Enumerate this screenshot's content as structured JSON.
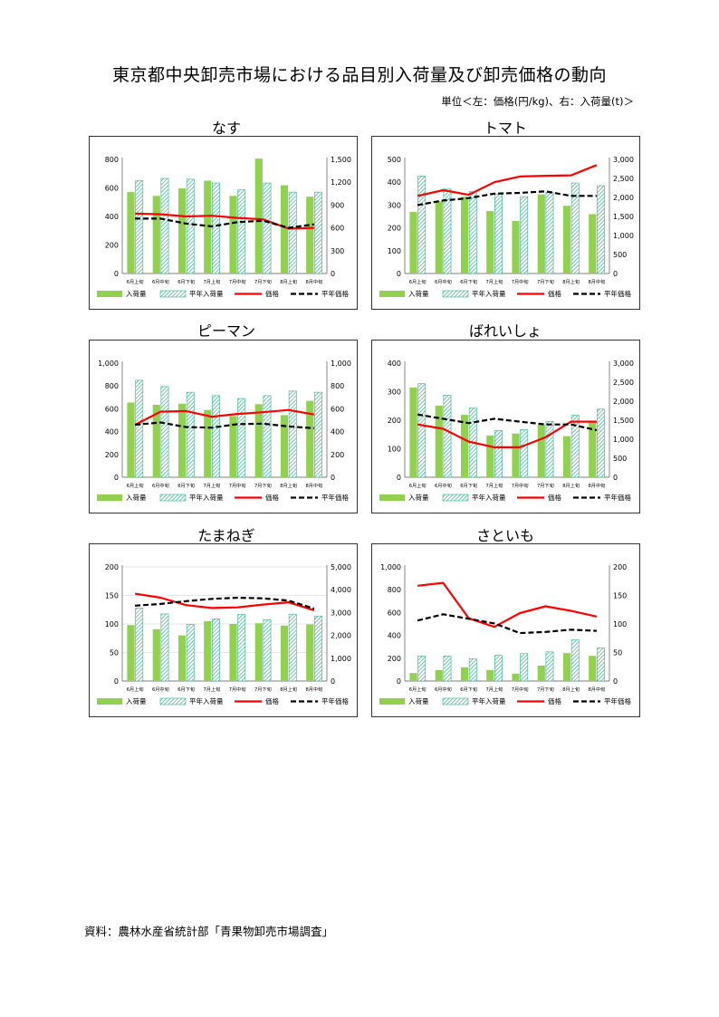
{
  "page": {
    "title": "東京都中央卸売市場における品目別入荷量及び卸売価格の動向",
    "unit_note": "単位＜左：価格(円/kg)、右：入荷量(t)＞",
    "source": "資料：農林水産省統計部「青果物卸売市場調査」"
  },
  "colors": {
    "arrival": "#92d050",
    "normal_arrival": "#33b08a",
    "price": "#ff0000",
    "normal_price": "#000000"
  },
  "legend": {
    "arrival": "入荷量",
    "normal_arrival": "平年入荷量",
    "price": "価格",
    "normal_price": "平年価格"
  },
  "chart_data": [
    {
      "type": "bar",
      "title": "なす",
      "categories": [
        "6月上旬",
        "6月中旬",
        "6月下旬",
        "7月上旬",
        "7月中旬",
        "7月下旬",
        "8月上旬",
        "8月中旬"
      ],
      "left_axis": {
        "min": 0,
        "max": 800,
        "ticks": [
          "0",
          "200",
          "400",
          "600",
          "800"
        ]
      },
      "right_axis": {
        "min": 0,
        "max": 1500,
        "ticks": [
          "0",
          "300",
          "600",
          "900",
          "1,200",
          "1,500"
        ]
      },
      "series": [
        {
          "name": "入荷量",
          "axis": "right",
          "values": [
            1070,
            1020,
            1120,
            1220,
            1020,
            1510,
            1160,
            1010
          ]
        },
        {
          "name": "平年入荷量",
          "axis": "right",
          "values": [
            1220,
            1250,
            1240,
            1190,
            1100,
            1190,
            1070,
            1070
          ]
        },
        {
          "name": "価格",
          "axis": "left",
          "values": [
            420,
            415,
            400,
            405,
            390,
            380,
            315,
            320
          ]
        },
        {
          "name": "平年価格",
          "axis": "left",
          "values": [
            385,
            385,
            350,
            330,
            360,
            370,
            320,
            345
          ]
        }
      ]
    },
    {
      "type": "bar",
      "title": "トマト",
      "categories": [
        "6月上旬",
        "6月中旬",
        "6月下旬",
        "7月上旬",
        "7月中旬",
        "7月下旬",
        "8月上旬",
        "8月中旬"
      ],
      "left_axis": {
        "min": 0,
        "max": 500,
        "ticks": [
          "0",
          "100",
          "200",
          "300",
          "400",
          "500"
        ]
      },
      "right_axis": {
        "min": 0,
        "max": 3000,
        "ticks": [
          "0",
          "500",
          "1,000",
          "1,500",
          "2,000",
          "2,500",
          "3,000"
        ]
      },
      "series": [
        {
          "name": "入荷量",
          "axis": "right",
          "values": [
            1620,
            1900,
            2020,
            1640,
            1380,
            2080,
            1780,
            1560
          ]
        },
        {
          "name": "平年入荷量",
          "axis": "right",
          "values": [
            2560,
            2220,
            2150,
            2080,
            2020,
            2130,
            2380,
            2310
          ]
        },
        {
          "name": "価格",
          "axis": "left",
          "values": [
            340,
            365,
            345,
            400,
            425,
            428,
            430,
            475
          ]
        },
        {
          "name": "平年価格",
          "axis": "left",
          "values": [
            300,
            320,
            330,
            350,
            353,
            360,
            340,
            340
          ]
        }
      ]
    },
    {
      "type": "bar",
      "title": "ピーマン",
      "categories": [
        "6月上旬",
        "6月中旬",
        "6月下旬",
        "7月上旬",
        "7月中旬",
        "7月下旬",
        "8月上旬",
        "8月中旬"
      ],
      "left_axis": {
        "min": 0,
        "max": 1000,
        "ticks": [
          "0",
          "200",
          "400",
          "600",
          "800",
          "1,000"
        ]
      },
      "right_axis": {
        "min": 0,
        "max": 1000,
        "ticks": [
          "0",
          "200",
          "400",
          "600",
          "800",
          "1,000"
        ]
      },
      "series": [
        {
          "name": "入荷量",
          "axis": "right",
          "values": [
            655,
            635,
            645,
            590,
            535,
            640,
            545,
            670
          ]
        },
        {
          "name": "平年入荷量",
          "axis": "right",
          "values": [
            850,
            795,
            745,
            715,
            690,
            715,
            755,
            745
          ]
        },
        {
          "name": "価格",
          "axis": "left",
          "values": [
            460,
            575,
            580,
            530,
            555,
            570,
            590,
            550
          ]
        },
        {
          "name": "平年価格",
          "axis": "left",
          "values": [
            460,
            480,
            440,
            435,
            465,
            470,
            445,
            430
          ]
        }
      ]
    },
    {
      "type": "bar",
      "title": "ばれいしょ",
      "categories": [
        "6月上旬",
        "6月中旬",
        "6月下旬",
        "7月上旬",
        "7月中旬",
        "7月下旬",
        "8月上旬",
        "8月中旬"
      ],
      "left_axis": {
        "min": 0,
        "max": 400,
        "ticks": [
          "0",
          "100",
          "200",
          "300",
          "400"
        ]
      },
      "right_axis": {
        "min": 0,
        "max": 3000,
        "ticks": [
          "0",
          "500",
          "1,000",
          "1,500",
          "2,000",
          "2,500",
          "3,000"
        ]
      },
      "series": [
        {
          "name": "入荷量",
          "axis": "right",
          "values": [
            2360,
            1880,
            1640,
            1100,
            1150,
            1380,
            1080,
            1450
          ]
        },
        {
          "name": "平年入荷量",
          "axis": "right",
          "values": [
            2460,
            2160,
            1820,
            1230,
            1250,
            1470,
            1630,
            1790
          ]
        },
        {
          "name": "価格",
          "axis": "left",
          "values": [
            185,
            170,
            125,
            105,
            105,
            140,
            195,
            195
          ]
        },
        {
          "name": "平年価格",
          "axis": "left",
          "values": [
            220,
            205,
            190,
            205,
            195,
            185,
            185,
            165
          ]
        }
      ]
    },
    {
      "type": "bar",
      "title": "たまねぎ",
      "categories": [
        "6月上旬",
        "6月中旬",
        "6月下旬",
        "7月上旬",
        "7月中旬",
        "7月下旬",
        "8月上旬",
        "8月中旬"
      ],
      "left_axis": {
        "min": 0,
        "max": 200,
        "ticks": [
          "0",
          "50",
          "100",
          "150",
          "200"
        ]
      },
      "right_axis": {
        "min": 0,
        "max": 5000,
        "ticks": [
          "0",
          "1,000",
          "2,000",
          "3,000",
          "4,000",
          "5,000"
        ]
      },
      "series": [
        {
          "name": "入荷量",
          "axis": "right",
          "values": [
            2450,
            2270,
            2000,
            2620,
            2500,
            2530,
            2430,
            2480
          ]
        },
        {
          "name": "平年入荷量",
          "axis": "right",
          "values": [
            3200,
            2940,
            2490,
            2720,
            2920,
            2680,
            2930,
            2850
          ]
        },
        {
          "name": "価格",
          "axis": "left",
          "values": [
            153,
            146,
            133,
            128,
            129,
            134,
            138,
            124
          ]
        },
        {
          "name": "平年価格",
          "axis": "left",
          "values": [
            132,
            135,
            140,
            144,
            146,
            145,
            141,
            127
          ]
        }
      ]
    },
    {
      "type": "bar",
      "title": "さといも",
      "categories": [
        "6月上旬",
        "6月中旬",
        "6月下旬",
        "7月上旬",
        "7月中旬",
        "7月下旬",
        "8月上旬",
        "8月中旬"
      ],
      "left_axis": {
        "min": 0,
        "max": 1000,
        "ticks": [
          "0",
          "200",
          "400",
          "600",
          "800",
          "1,000"
        ]
      },
      "right_axis": {
        "min": 0,
        "max": 200,
        "ticks": [
          "0",
          "50",
          "100",
          "150",
          "200"
        ]
      },
      "series": [
        {
          "name": "入荷量",
          "axis": "right",
          "values": [
            14,
            19,
            24,
            19,
            13,
            27,
            49,
            44
          ]
        },
        {
          "name": "平年入荷量",
          "axis": "right",
          "values": [
            44,
            44,
            39,
            45,
            48,
            51,
            72,
            58
          ]
        },
        {
          "name": "価格",
          "axis": "left",
          "values": [
            835,
            860,
            550,
            475,
            595,
            655,
            615,
            565
          ]
        },
        {
          "name": "平年価格",
          "axis": "left",
          "values": [
            530,
            585,
            545,
            505,
            420,
            430,
            450,
            440
          ]
        }
      ]
    }
  ]
}
